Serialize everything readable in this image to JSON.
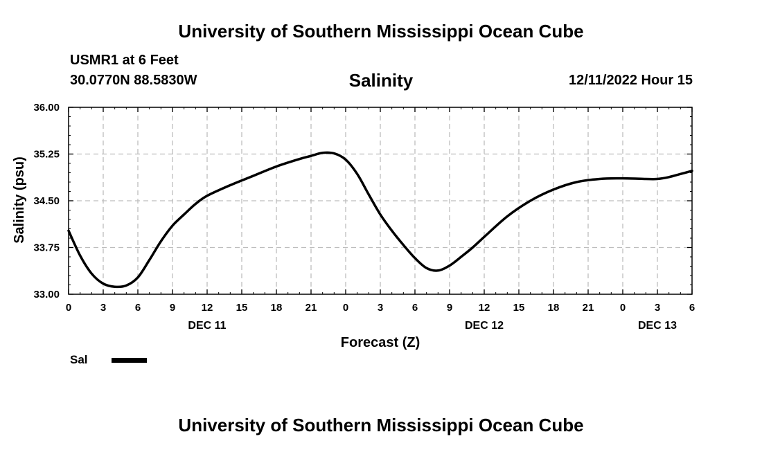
{
  "header": {
    "title": "University of Southern Mississippi Ocean Cube",
    "station": "USMR1 at 6 Feet",
    "coordinates": "30.0770N  88.5830W",
    "datetime": "12/11/2022 Hour 15",
    "footer_title": "University of Southern Mississippi Ocean Cube"
  },
  "chart_data": {
    "type": "line",
    "title": "Salinity",
    "xlabel": "Forecast (Z)",
    "ylabel": "Salinity (psu)",
    "ylim": [
      33.0,
      36.0
    ],
    "xlim": [
      0,
      54
    ],
    "yticks": [
      33.0,
      33.75,
      34.5,
      35.25,
      36.0
    ],
    "ytick_labels": [
      "33.00",
      "33.75",
      "34.50",
      "35.25",
      "36.00"
    ],
    "xtick_hours": [
      0,
      3,
      6,
      9,
      12,
      15,
      18,
      21,
      24,
      27,
      30,
      33,
      36,
      39,
      42,
      45,
      48,
      51,
      54
    ],
    "xtick_labels": [
      "0",
      "3",
      "6",
      "9",
      "12",
      "15",
      "18",
      "21",
      "0",
      "3",
      "6",
      "9",
      "12",
      "15",
      "18",
      "21",
      "0",
      "3",
      "6"
    ],
    "day_labels": [
      {
        "hour": 12,
        "label": "DEC 11"
      },
      {
        "hour": 36,
        "label": "DEC 12"
      },
      {
        "hour": 51,
        "label": "DEC 13"
      }
    ],
    "grid": true,
    "series": [
      {
        "name": "Sal",
        "color": "#000000",
        "x": [
          0,
          1,
          2,
          3,
          4,
          5,
          6,
          7,
          8,
          9,
          10,
          11,
          12,
          14,
          16,
          18,
          20,
          21,
          22,
          23,
          24,
          25,
          26,
          27,
          28,
          29,
          30,
          31,
          32,
          33,
          34,
          35,
          36,
          38,
          40,
          42,
          44,
          46,
          48,
          50,
          51,
          52,
          53,
          54
        ],
        "values": [
          34.02,
          33.62,
          33.33,
          33.17,
          33.12,
          33.14,
          33.27,
          33.55,
          33.85,
          34.1,
          34.28,
          34.45,
          34.58,
          34.75,
          34.9,
          35.05,
          35.17,
          35.22,
          35.27,
          35.26,
          35.16,
          34.93,
          34.6,
          34.28,
          34.02,
          33.79,
          33.58,
          33.42,
          33.38,
          33.46,
          33.6,
          33.75,
          33.92,
          34.25,
          34.5,
          34.68,
          34.8,
          34.85,
          34.86,
          34.85,
          34.85,
          34.88,
          34.93,
          34.98
        ]
      }
    ],
    "legend": {
      "label": "Sal",
      "position": "bottom-left"
    }
  }
}
